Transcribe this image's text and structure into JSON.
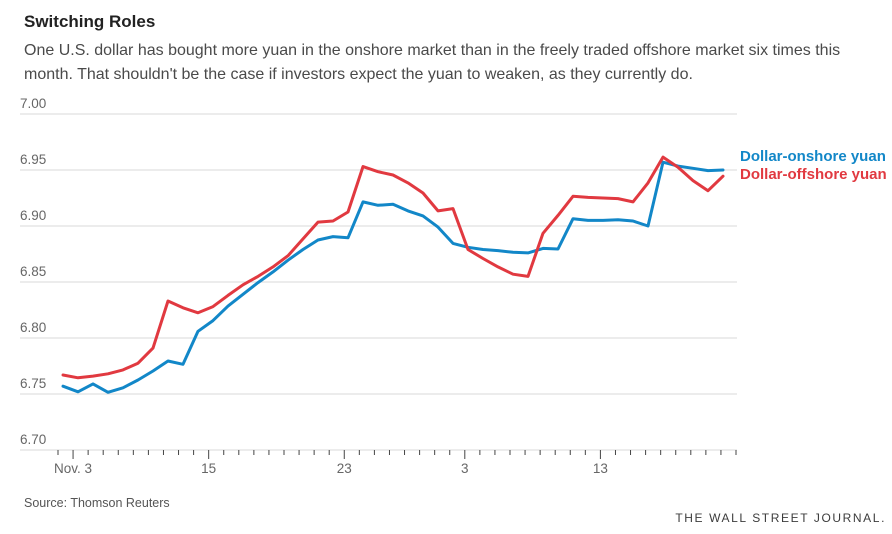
{
  "header": {
    "title": "Switching Roles",
    "subtitle": "One U.S. dollar has bought more yuan in the onshore market than in the freely traded offshore market six times this month. That shouldn't be the case if investors expect the yuan to weaken, as they currently do."
  },
  "chart_data": {
    "type": "line",
    "title": "Switching Roles",
    "xlabel": "",
    "ylabel": "",
    "ylim": [
      6.7,
      7.0
    ],
    "grid": true,
    "legend_position": "right-of-line-end",
    "y_tick_labels": [
      "7.00",
      "6.95",
      "6.90",
      "6.85",
      "6.80",
      "6.75",
      "6.70"
    ],
    "y_tick_values": [
      7.0,
      6.95,
      6.9,
      6.85,
      6.8,
      6.75,
      6.7
    ],
    "minor_tick_count": 46,
    "x_tick_labels": [
      {
        "label": "Nov. 3",
        "tick_index": 1
      },
      {
        "label": "15",
        "tick_index": 10
      },
      {
        "label": "23",
        "tick_index": 19
      },
      {
        "label": "3",
        "tick_index": 27
      },
      {
        "label": "13",
        "tick_index": 36
      }
    ],
    "series": [
      {
        "name": "Dollar-onshore yuan",
        "color": "#1287c8",
        "values": [
          6.757,
          6.752,
          6.759,
          6.7515,
          6.7555,
          6.7625,
          6.7705,
          6.7795,
          6.7765,
          6.806,
          6.8155,
          6.8285,
          6.839,
          6.8495,
          6.859,
          6.8695,
          6.879,
          6.8875,
          6.8905,
          6.8895,
          6.9215,
          6.9185,
          6.9195,
          6.9135,
          6.909,
          6.899,
          6.8845,
          6.881,
          6.879,
          6.878,
          6.8765,
          6.876,
          6.88,
          6.8795,
          6.9065,
          6.905,
          6.905,
          6.9055,
          6.9045,
          6.9,
          6.957,
          6.9535,
          6.9515,
          6.9495,
          6.95
        ]
      },
      {
        "name": "Dollar-offshore yuan",
        "color": "#e13940",
        "values": [
          6.767,
          6.7645,
          6.766,
          6.768,
          6.7715,
          6.7775,
          6.791,
          6.833,
          6.827,
          6.8225,
          6.828,
          6.838,
          6.8475,
          6.855,
          6.8635,
          6.8735,
          6.8885,
          6.9035,
          6.9045,
          6.9125,
          6.953,
          6.9485,
          6.9455,
          6.9385,
          6.9295,
          6.9135,
          6.9155,
          6.879,
          6.871,
          6.8635,
          6.857,
          6.855,
          6.8935,
          6.9095,
          6.9265,
          6.9255,
          6.925,
          6.9245,
          6.9215,
          6.9385,
          6.9615,
          6.9525,
          6.9405,
          6.9315,
          6.9445
        ]
      }
    ]
  },
  "footer": {
    "source": "Source: Thomson Reuters",
    "brand": "THE WALL STREET JOURNAL."
  },
  "colors": {
    "grid": "#d9d9d9",
    "tick": "#444444",
    "axis_label": "#666666"
  }
}
